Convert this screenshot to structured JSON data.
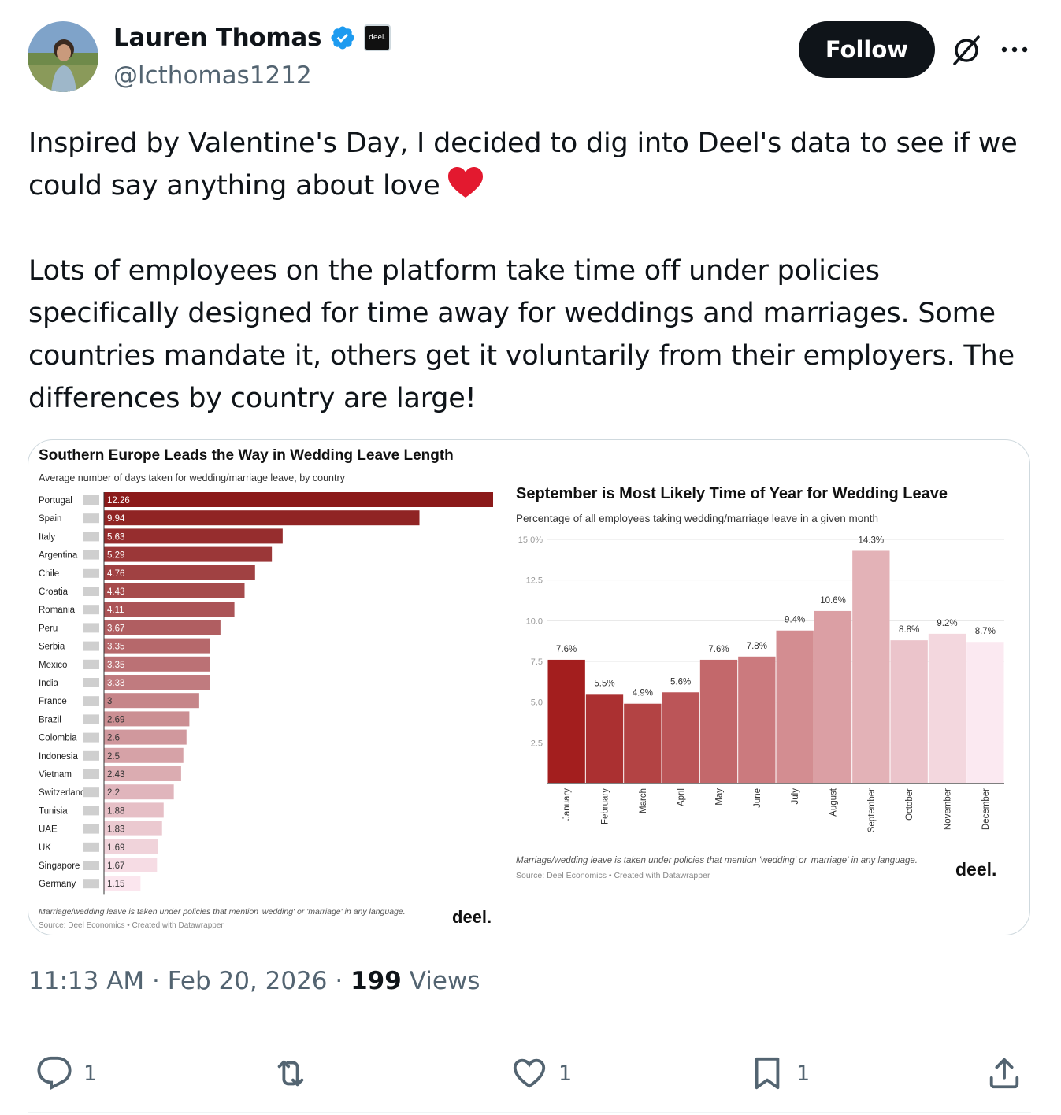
{
  "author": {
    "display_name": "Lauren Thomas",
    "handle": "@lcthomas1212",
    "affiliate_badge_text": "deel.",
    "avatar_icon": "profile-photo"
  },
  "header": {
    "follow_label": "Follow",
    "grok_icon": "grok-icon",
    "more_icon": "more-icon"
  },
  "tweet": {
    "paragraph_1": "Inspired by Valentine's Day, I decided to dig into Deel's data to see if we could say anything about love",
    "paragraph_2": "Lots of employees on the platform take time off under policies specifically designed for time away for weddings and marriages. Some countries mandate it, others get it voluntarily from their employers. The differences by country are large!",
    "emoji": "red-heart"
  },
  "colors": {
    "text": "#0f1419",
    "secondary": "#536471",
    "bar_dark": "#8b1a1a",
    "bar_light": "#fbe6ee"
  },
  "chart_data": [
    {
      "type": "bar",
      "orientation": "horizontal",
      "title": "Southern Europe Leads the Way in Wedding Leave Length",
      "subtitle": "Average number of days taken for wedding/marriage leave, by country",
      "categories": [
        "Portugal",
        "Spain",
        "Italy",
        "Argentina",
        "Chile",
        "Croatia",
        "Romania",
        "Peru",
        "Serbia",
        "Mexico",
        "India",
        "France",
        "Brazil",
        "Colombia",
        "Indonesia",
        "Vietnam",
        "Switzerland",
        "Tunisia",
        "UAE",
        "UK",
        "Singapore",
        "Germany"
      ],
      "values": [
        12.26,
        9.94,
        5.63,
        5.29,
        4.76,
        4.43,
        4.11,
        3.67,
        3.35,
        3.35,
        3.33,
        3,
        2.69,
        2.6,
        2.5,
        2.43,
        2.2,
        1.88,
        1.83,
        1.69,
        1.67,
        1.15
      ],
      "value_labels": [
        "12.26",
        "9.94",
        "5.63",
        "5.29",
        "4.76",
        "4.43",
        "4.11",
        "3.67",
        "3.35",
        "3.35",
        "3.33",
        "3",
        "2.69",
        "2.6",
        "2.5",
        "2.43",
        "2.2",
        "1.88",
        "1.83",
        "1.69",
        "1.67",
        "1.15"
      ],
      "note": "Marriage/wedding leave is taken under policies that mention 'wedding' or 'marriage' in any language.",
      "source": "Source: Deel Economics • Created with Datawrapper",
      "logo": "deel."
    },
    {
      "type": "bar",
      "title": "September is Most Likely Time of Year for Wedding Leave",
      "subtitle": "Percentage of all employees taking wedding/marriage leave in a given month",
      "categories": [
        "January",
        "February",
        "March",
        "April",
        "May",
        "June",
        "July",
        "August",
        "September",
        "October",
        "November",
        "December"
      ],
      "values": [
        7.6,
        5.5,
        4.9,
        5.6,
        7.6,
        7.8,
        9.4,
        10.6,
        14.3,
        8.8,
        9.2,
        8.7
      ],
      "value_labels": [
        "7.6%",
        "5.5%",
        "4.9%",
        "5.6%",
        "7.6%",
        "7.8%",
        "9.4%",
        "10.6%",
        "14.3%",
        "8.8%",
        "9.2%",
        "8.7%"
      ],
      "ylim": [
        0,
        15
      ],
      "y_ticks": [
        "2.5",
        "5.0",
        "7.5",
        "10.0",
        "12.5",
        "15.0%"
      ],
      "grid": true,
      "note": "Marriage/wedding leave is taken under policies that mention 'wedding' or 'marriage' in any language.",
      "source": "Source: Deel Economics • Created with Datawrapper",
      "logo": "deel."
    }
  ],
  "meta": {
    "time": "11:13 AM",
    "separator": "·",
    "date": "Feb 20, 2026",
    "views_count": "199",
    "views_label": "Views"
  },
  "actions": {
    "reply_count": "1",
    "retweet_count": "",
    "like_count": "1",
    "bookmark_count": "1"
  }
}
